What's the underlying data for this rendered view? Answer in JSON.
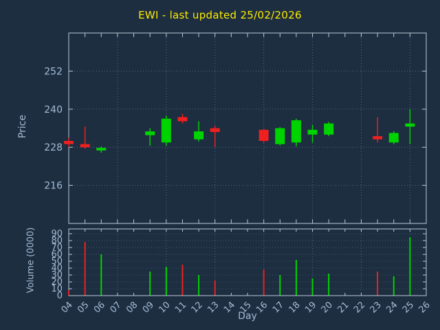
{
  "title": "EWI - last updated 25/02/2026",
  "colors": {
    "background": "#1c2e40",
    "title": "#ffec00",
    "text": "#a6bcd4",
    "border": "#bcc9d8",
    "grid": "#64809b",
    "up": "#00d400",
    "down": "#ee2020"
  },
  "chart_data": {
    "type": "candlestick+volume",
    "title": "EWI - last updated 25/02/2026",
    "xlabel": "Day",
    "ylabel_price": "Price",
    "ylabel_volume": "Volume (0000)",
    "x_ticks": [
      "04",
      "05",
      "06",
      "07",
      "08",
      "09",
      "10",
      "11",
      "12",
      "13",
      "14",
      "15",
      "16",
      "17",
      "18",
      "19",
      "20",
      "21",
      "22",
      "23",
      "24",
      "25",
      "26"
    ],
    "grid_days": [
      "04",
      "07",
      "10",
      "13",
      "16",
      "19",
      "22",
      "25"
    ],
    "price_ticks": [
      216,
      228,
      240,
      252
    ],
    "price_range": [
      204,
      264
    ],
    "volume_ticks": [
      0,
      10,
      20,
      30,
      40,
      50,
      60,
      70,
      80,
      90
    ],
    "volume_range": [
      0,
      97
    ],
    "legend_position": "none",
    "grid": true,
    "candles": [
      {
        "day": "04",
        "open": 230.0,
        "high": 231.0,
        "low": 228.0,
        "close": 229.0,
        "volume": 8
      },
      {
        "day": "05",
        "open": 229.0,
        "high": 234.5,
        "low": 227.5,
        "close": 228.0,
        "volume": 78
      },
      {
        "day": "06",
        "open": 227.0,
        "high": 228.2,
        "low": 226.3,
        "close": 227.8,
        "volume": 60
      },
      {
        "day": "09",
        "open": 231.8,
        "high": 234.0,
        "low": 228.5,
        "close": 233.0,
        "volume": 35
      },
      {
        "day": "10",
        "open": 229.5,
        "high": 238.0,
        "low": 228.5,
        "close": 237.0,
        "volume": 42
      },
      {
        "day": "11",
        "open": 237.5,
        "high": 238.5,
        "low": 235.5,
        "close": 236.2,
        "volume": 45
      },
      {
        "day": "12",
        "open": 230.5,
        "high": 236.2,
        "low": 229.8,
        "close": 233.0,
        "volume": 30
      },
      {
        "day": "13",
        "open": 234.0,
        "high": 234.8,
        "low": 228.0,
        "close": 232.8,
        "volume": 22
      },
      {
        "day": "16",
        "open": 233.5,
        "high": 233.8,
        "low": 229.5,
        "close": 230.0,
        "volume": 38
      },
      {
        "day": "17",
        "open": 229.0,
        "high": 234.3,
        "low": 228.6,
        "close": 234.0,
        "volume": 30
      },
      {
        "day": "18",
        "open": 229.5,
        "high": 237.0,
        "low": 228.3,
        "close": 236.5,
        "volume": 52
      },
      {
        "day": "19",
        "open": 232.0,
        "high": 235.0,
        "low": 229.5,
        "close": 233.5,
        "volume": 25
      },
      {
        "day": "20",
        "open": 232.0,
        "high": 236.0,
        "low": 231.5,
        "close": 235.5,
        "volume": 32
      },
      {
        "day": "23",
        "open": 231.5,
        "high": 237.5,
        "low": 229.5,
        "close": 230.5,
        "volume": 35
      },
      {
        "day": "24",
        "open": 229.5,
        "high": 233.0,
        "low": 229.0,
        "close": 232.5,
        "volume": 28
      },
      {
        "day": "25",
        "open": 234.5,
        "high": 240.0,
        "low": 229.0,
        "close": 235.5,
        "volume": 85
      }
    ]
  }
}
